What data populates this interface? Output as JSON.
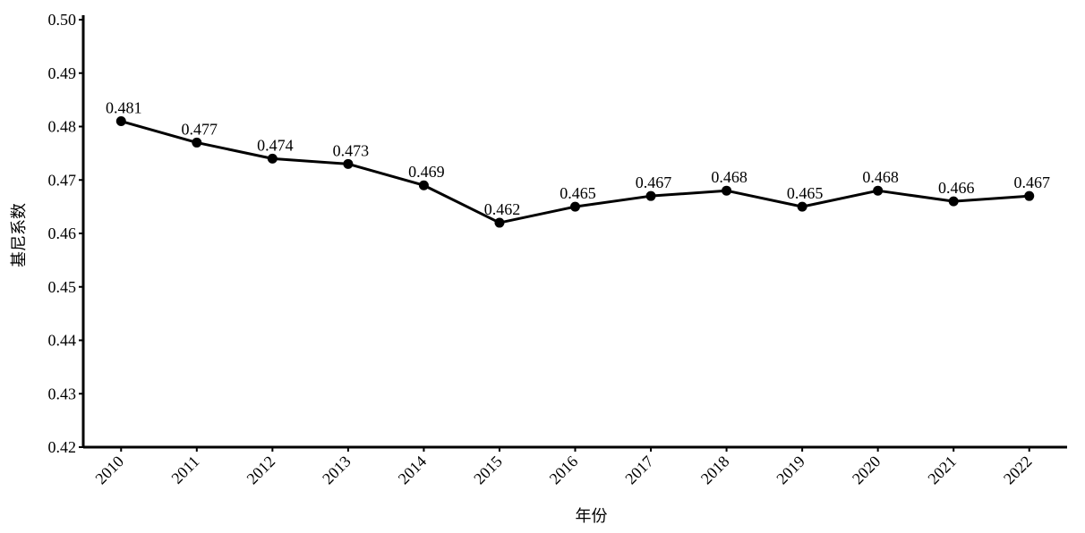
{
  "chart_data": {
    "type": "line",
    "title": "",
    "xlabel": "年份",
    "ylabel": "基尼系数",
    "ylim": [
      0.42,
      0.5
    ],
    "y_ticks": [
      "0.42",
      "0.43",
      "0.44",
      "0.45",
      "0.46",
      "0.47",
      "0.48",
      "0.49",
      "0.50"
    ],
    "categories": [
      "2010",
      "2011",
      "2012",
      "2013",
      "2014",
      "2015",
      "2016",
      "2017",
      "2018",
      "2019",
      "2020",
      "2021",
      "2022"
    ],
    "series": [
      {
        "values": [
          0.481,
          0.477,
          0.474,
          0.473,
          0.469,
          0.462,
          0.465,
          0.467,
          0.468,
          0.465,
          0.468,
          0.466,
          0.467
        ],
        "labels": [
          "0.481",
          "0.477",
          "0.474",
          "0.473",
          "0.469",
          "0.462",
          "0.465",
          "0.467",
          "0.468",
          "0.465",
          "0.468",
          "0.466",
          "0.467"
        ],
        "color": "#000000"
      }
    ],
    "grid": false,
    "legend": "none",
    "x_tick_rotation": -45
  }
}
